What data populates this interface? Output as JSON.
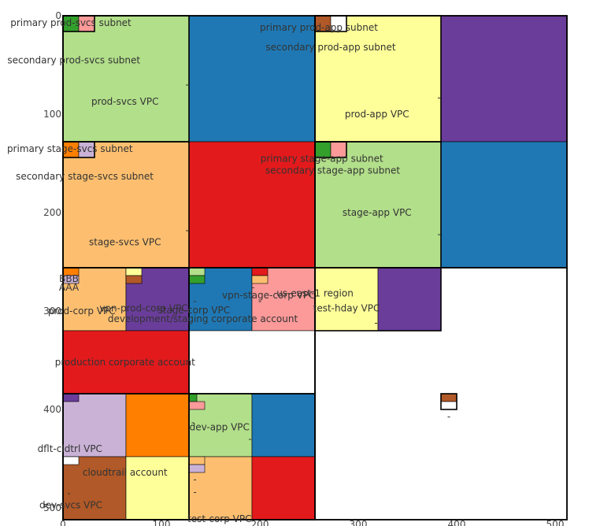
{
  "chart_data": {
    "type": "treemap",
    "title": "",
    "xlabel": "",
    "ylabel": "",
    "xlim": [
      0,
      512
    ],
    "ylim": [
      0,
      512
    ],
    "x_ticks": [
      0,
      100,
      200,
      300,
      400,
      500
    ],
    "y_ticks": [
      0,
      100,
      200,
      300,
      400,
      500
    ],
    "grid": false,
    "colors": {
      "light_green": "#b2df8a",
      "blue": "#1f78b4",
      "yellow": "#ffff99",
      "purple": "#6a3d9a",
      "light_orange": "#fdbf6f",
      "red": "#e31a1c",
      "pink": "#fb9a99",
      "orange": "#ff7f00",
      "lavender": "#cab2d6",
      "brown": "#b15928",
      "green": "#33a02c",
      "white": "#ffffff",
      "outline": "#000000"
    },
    "rectangles": [
      {
        "x0": 0,
        "y0": 0,
        "x1": 128,
        "y1": 128,
        "color": "light_green"
      },
      {
        "x0": 128,
        "y0": 0,
        "x1": 256,
        "y1": 128,
        "color": "blue"
      },
      {
        "x0": 256,
        "y0": 0,
        "x1": 384,
        "y1": 128,
        "color": "yellow"
      },
      {
        "x0": 384,
        "y0": 0,
        "x1": 512,
        "y1": 128,
        "color": "purple"
      },
      {
        "x0": 0,
        "y0": 128,
        "x1": 128,
        "y1": 256,
        "color": "light_orange"
      },
      {
        "x0": 128,
        "y0": 128,
        "x1": 256,
        "y1": 256,
        "color": "red"
      },
      {
        "x0": 256,
        "y0": 128,
        "x1": 384,
        "y1": 256,
        "color": "light_green"
      },
      {
        "x0": 384,
        "y0": 128,
        "x1": 512,
        "y1": 256,
        "color": "blue"
      },
      {
        "x0": 0,
        "y0": 256,
        "x1": 64,
        "y1": 320,
        "color": "light_orange"
      },
      {
        "x0": 64,
        "y0": 256,
        "x1": 128,
        "y1": 320,
        "color": "purple"
      },
      {
        "x0": 128,
        "y0": 256,
        "x1": 192,
        "y1": 320,
        "color": "blue"
      },
      {
        "x0": 192,
        "y0": 256,
        "x1": 256,
        "y1": 320,
        "color": "pink"
      },
      {
        "x0": 256,
        "y0": 256,
        "x1": 320,
        "y1": 320,
        "color": "yellow"
      },
      {
        "x0": 320,
        "y0": 256,
        "x1": 384,
        "y1": 320,
        "color": "purple"
      },
      {
        "x0": 0,
        "y0": 320,
        "x1": 128,
        "y1": 384,
        "color": "red"
      },
      {
        "x0": 128,
        "y0": 320,
        "x1": 256,
        "y1": 384,
        "color": "white"
      },
      {
        "x0": 0,
        "y0": 384,
        "x1": 64,
        "y1": 448,
        "color": "lavender"
      },
      {
        "x0": 64,
        "y0": 384,
        "x1": 128,
        "y1": 448,
        "color": "orange"
      },
      {
        "x0": 128,
        "y0": 384,
        "x1": 192,
        "y1": 448,
        "color": "light_green"
      },
      {
        "x0": 192,
        "y0": 384,
        "x1": 256,
        "y1": 448,
        "color": "blue"
      },
      {
        "x0": 0,
        "y0": 448,
        "x1": 64,
        "y1": 512,
        "color": "brown"
      },
      {
        "x0": 64,
        "y0": 448,
        "x1": 128,
        "y1": 512,
        "color": "yellow"
      },
      {
        "x0": 128,
        "y0": 448,
        "x1": 192,
        "y1": 512,
        "color": "light_orange"
      },
      {
        "x0": 192,
        "y0": 448,
        "x1": 256,
        "y1": 512,
        "color": "red"
      },
      {
        "x0": 0,
        "y0": 0,
        "x1": 16,
        "y1": 16,
        "color": "green"
      },
      {
        "x0": 16,
        "y0": 0,
        "x1": 32,
        "y1": 16,
        "color": "pink"
      },
      {
        "x0": 256,
        "y0": 0,
        "x1": 272,
        "y1": 16,
        "color": "brown"
      },
      {
        "x0": 272,
        "y0": 0,
        "x1": 288,
        "y1": 16,
        "color": "white"
      },
      {
        "x0": 0,
        "y0": 128,
        "x1": 16,
        "y1": 144,
        "color": "orange"
      },
      {
        "x0": 16,
        "y0": 128,
        "x1": 32,
        "y1": 144,
        "color": "lavender"
      },
      {
        "x0": 256,
        "y0": 128,
        "x1": 272,
        "y1": 144,
        "color": "green"
      },
      {
        "x0": 272,
        "y0": 128,
        "x1": 288,
        "y1": 144,
        "color": "pink"
      },
      {
        "x0": 0,
        "y0": 256,
        "x1": 16,
        "y1": 264,
        "color": "orange"
      },
      {
        "x0": 0,
        "y0": 264,
        "x1": 16,
        "y1": 272,
        "color": "lavender"
      },
      {
        "x0": 64,
        "y0": 256,
        "x1": 80,
        "y1": 264,
        "color": "yellow"
      },
      {
        "x0": 64,
        "y0": 264,
        "x1": 80,
        "y1": 272,
        "color": "brown"
      },
      {
        "x0": 128,
        "y0": 256,
        "x1": 144,
        "y1": 264,
        "color": "light_green"
      },
      {
        "x0": 128,
        "y0": 264,
        "x1": 144,
        "y1": 272,
        "color": "green"
      },
      {
        "x0": 192,
        "y0": 256,
        "x1": 208,
        "y1": 264,
        "color": "red"
      },
      {
        "x0": 192,
        "y0": 264,
        "x1": 208,
        "y1": 272,
        "color": "light_orange"
      },
      {
        "x0": 0,
        "y0": 384,
        "x1": 16,
        "y1": 392,
        "color": "purple"
      },
      {
        "x0": 128,
        "y0": 384,
        "x1": 136,
        "y1": 392,
        "color": "green"
      },
      {
        "x0": 128,
        "y0": 392,
        "x1": 144,
        "y1": 400,
        "color": "pink"
      },
      {
        "x0": 0,
        "y0": 448,
        "x1": 16,
        "y1": 456,
        "color": "white"
      },
      {
        "x0": 128,
        "y0": 448,
        "x1": 144,
        "y1": 456,
        "color": "light_orange"
      },
      {
        "x0": 128,
        "y0": 456,
        "x1": 144,
        "y1": 464,
        "color": "lavender"
      },
      {
        "x0": 384,
        "y0": 384,
        "x1": 400,
        "y1": 392,
        "color": "brown"
      },
      {
        "x0": 384,
        "y0": 392,
        "x1": 400,
        "y1": 400,
        "color": "white"
      }
    ],
    "outlines": [
      {
        "x0": 0,
        "y0": 0,
        "x1": 256,
        "y1": 256
      },
      {
        "x0": 256,
        "y0": 0,
        "x1": 512,
        "y1": 256
      },
      {
        "x0": 0,
        "y0": 256,
        "x1": 256,
        "y1": 512
      },
      {
        "x0": 256,
        "y0": 256,
        "x1": 512,
        "y1": 512
      },
      {
        "x0": 0,
        "y0": 0,
        "x1": 128,
        "y1": 128
      },
      {
        "x0": 256,
        "y0": 0,
        "x1": 384,
        "y1": 128
      },
      {
        "x0": 0,
        "y0": 128,
        "x1": 128,
        "y1": 256
      },
      {
        "x0": 256,
        "y0": 128,
        "x1": 384,
        "y1": 256
      },
      {
        "x0": 0,
        "y0": 256,
        "x1": 128,
        "y1": 384
      },
      {
        "x0": 128,
        "y0": 256,
        "x1": 256,
        "y1": 384
      },
      {
        "x0": 0,
        "y0": 384,
        "x1": 128,
        "y1": 512
      },
      {
        "x0": 128,
        "y0": 384,
        "x1": 256,
        "y1": 512
      },
      {
        "x0": 256,
        "y0": 256,
        "x1": 384,
        "y1": 320
      },
      {
        "x0": 0,
        "y0": 0,
        "x1": 32,
        "y1": 16
      },
      {
        "x0": 256,
        "y0": 0,
        "x1": 288,
        "y1": 16
      },
      {
        "x0": 0,
        "y0": 128,
        "x1": 32,
        "y1": 144
      },
      {
        "x0": 256,
        "y0": 128,
        "x1": 288,
        "y1": 144
      },
      {
        "x0": 384,
        "y0": 384,
        "x1": 400,
        "y1": 400
      }
    ],
    "labels": [
      {
        "text": "primary prod-svcs subnet",
        "x": 8,
        "y": 7
      },
      {
        "text": "secondary prod-svcs subnet",
        "x": 11,
        "y": 45
      },
      {
        "text": "prod-svcs VPC",
        "x": 63,
        "y": 87
      },
      {
        "text": "primary prod-app subnet",
        "x": 260,
        "y": 12
      },
      {
        "text": "secondary prod-app subnet",
        "x": 272,
        "y": 32
      },
      {
        "text": "prod-app VPC",
        "x": 319,
        "y": 100
      },
      {
        "text": "primary stage-svcs subnet",
        "x": 7,
        "y": 135
      },
      {
        "text": "secondary stage-svcs subnet",
        "x": 22,
        "y": 163
      },
      {
        "text": "stage-svcs VPC",
        "x": 63,
        "y": 230
      },
      {
        "text": "primary stage-app subnet",
        "x": 263,
        "y": 145
      },
      {
        "text": "secondary stage-app subnet",
        "x": 274,
        "y": 157
      },
      {
        "text": "stage-app VPC",
        "x": 319,
        "y": 200
      },
      {
        "text": "BBB",
        "x": 6,
        "y": 267
      },
      {
        "text": "AAA",
        "x": 6,
        "y": 276
      },
      {
        "text": "prod-corp VPC",
        "x": 19,
        "y": 300
      },
      {
        "text": "vpn-prod-corp VPC",
        "x": 82,
        "y": 297
      },
      {
        "text": "stage-corp VPC",
        "x": 133,
        "y": 299
      },
      {
        "text": "development/staging corporate account",
        "x": 142,
        "y": 308
      },
      {
        "text": "vpn-stage-corp VPC",
        "x": 209,
        "y": 284
      },
      {
        "text": "us-east-1 region",
        "x": 256,
        "y": 282
      },
      {
        "text": "test-hday VPC",
        "x": 288,
        "y": 297
      },
      {
        "text": "production corporate account",
        "x": 63,
        "y": 352
      },
      {
        "text": "dev-app VPC",
        "x": 159,
        "y": 418
      },
      {
        "text": "dflt-cldtrl VPC",
        "x": 7,
        "y": 440
      },
      {
        "text": "cloudtrail account",
        "x": 63,
        "y": 464
      },
      {
        "text": "dev-svcs VPC",
        "x": 8,
        "y": 497
      },
      {
        "text": "test-corp VPC",
        "x": 159,
        "y": 511
      }
    ],
    "markers": [
      {
        "text": "-",
        "x": 126,
        "y": 70
      },
      {
        "text": "-",
        "x": 382,
        "y": 83
      },
      {
        "text": "-",
        "x": 126,
        "y": 218
      },
      {
        "text": "-",
        "x": 382,
        "y": 222
      },
      {
        "text": "-",
        "x": 193,
        "y": 276
      },
      {
        "text": "-",
        "x": 134,
        "y": 290
      },
      {
        "text": "-",
        "x": 200,
        "y": 290
      },
      {
        "text": "-",
        "x": 318,
        "y": 312
      },
      {
        "text": "-",
        "x": 392,
        "y": 407
      },
      {
        "text": "-",
        "x": 132,
        "y": 413
      },
      {
        "text": "-",
        "x": 190,
        "y": 430
      },
      {
        "text": "-",
        "x": 6,
        "y": 485
      },
      {
        "text": "-",
        "x": 134,
        "y": 471
      },
      {
        "text": "-",
        "x": 134,
        "y": 484
      }
    ]
  }
}
